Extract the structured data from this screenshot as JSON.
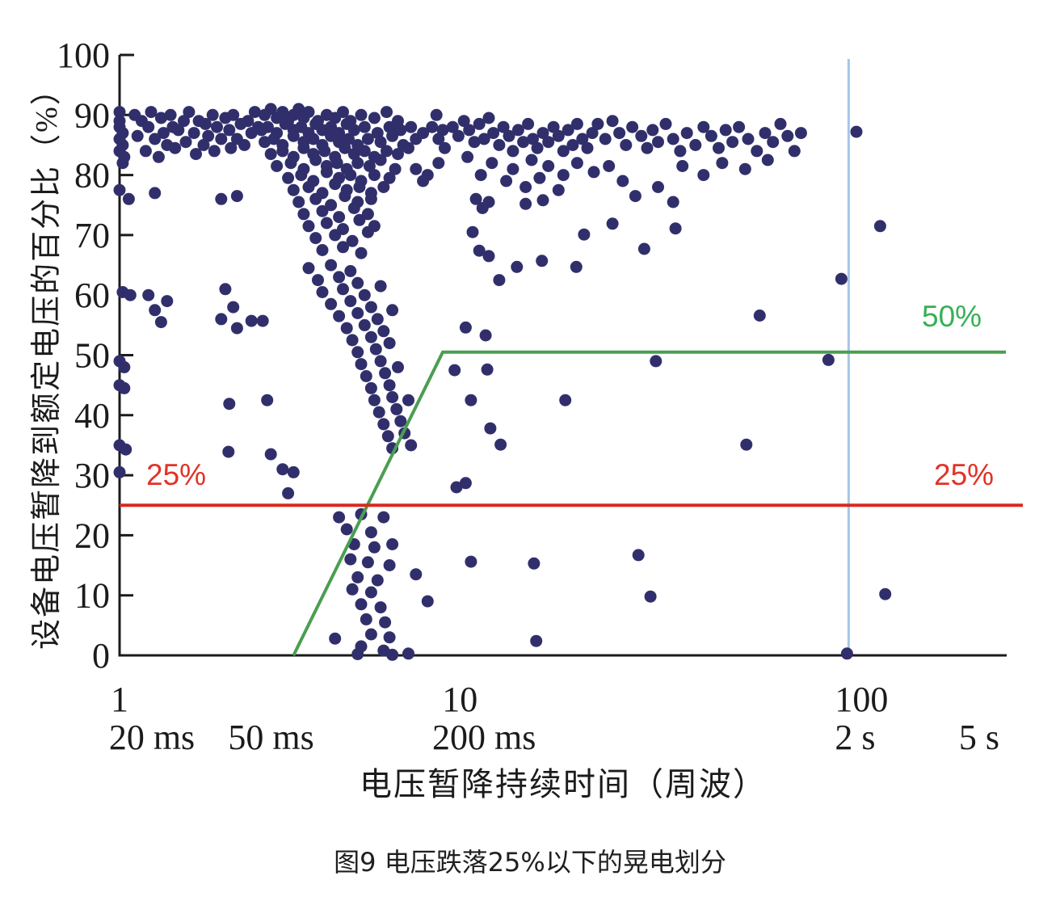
{
  "figure": {
    "caption": "图9 电压跌落25%以下的晃电划分"
  },
  "chart_data": {
    "type": "scatter",
    "title": "图9 电压跌落25%以下的晃电划分",
    "xlabel": "电压暂降持续时间（周波）",
    "ylabel": "设备电压暂降到额定电压的百分比（%）",
    "x_scale": "log",
    "x_range_cycles": [
      1,
      270
    ],
    "y_range_percent": [
      0,
      100
    ],
    "grid": "off",
    "y_ticks": [
      0,
      10,
      20,
      30,
      40,
      50,
      60,
      70,
      80,
      90,
      100
    ],
    "x_ticks": [
      {
        "cycles": 1,
        "label": "1",
        "time_label": "20 ms"
      },
      {
        "cycles": 2.5,
        "label": "",
        "time_label": "50 ms"
      },
      {
        "cycles": 10,
        "label": "10",
        "time_label": "200 ms"
      },
      {
        "cycles": 100,
        "label": "100",
        "time_label": "2 s"
      },
      {
        "cycles": 250,
        "label": "",
        "time_label": "5 s"
      }
    ],
    "colors": {
      "points": "#312f6b",
      "axis": "#1b1b1b",
      "red_line": "#d8291f",
      "red_label": "#e13328",
      "green_line": "#4b9e51",
      "green_label": "#35b155",
      "blue_line": "#a5c6e8"
    },
    "reference_lines": {
      "red_horizontal": {
        "percent": 25,
        "label": "25%",
        "label_positions": [
          "left",
          "right"
        ]
      },
      "green_curve": {
        "points_cycles_percent": [
          [
            3.0,
            0
          ],
          [
            7.7,
            50.5
          ],
          [
            270,
            50.5
          ]
        ],
        "label": "50%"
      },
      "blue_vertical": {
        "cycles": 100
      }
    },
    "points_cycles_percent": [
      [
        1,
        90.5
      ],
      [
        1,
        89
      ],
      [
        1,
        88
      ],
      [
        1.02,
        87
      ],
      [
        1,
        86
      ],
      [
        1.02,
        85
      ],
      [
        1,
        84
      ],
      [
        1.03,
        83
      ],
      [
        1.02,
        82
      ],
      [
        1,
        77.5
      ],
      [
        1.06,
        76
      ],
      [
        1.02,
        60.5
      ],
      [
        1.07,
        60
      ],
      [
        1,
        49
      ],
      [
        1.03,
        48
      ],
      [
        1,
        45
      ],
      [
        1.03,
        44.5
      ],
      [
        1,
        35
      ],
      [
        1.04,
        34.3
      ],
      [
        1,
        30.5
      ],
      [
        1.1,
        90
      ],
      [
        1.12,
        86.5
      ],
      [
        1.15,
        89
      ],
      [
        1.18,
        84
      ],
      [
        1.2,
        88
      ],
      [
        1.22,
        90.5
      ],
      [
        1.25,
        86
      ],
      [
        1.28,
        83
      ],
      [
        1.3,
        89.5
      ],
      [
        1.32,
        87
      ],
      [
        1.35,
        85
      ],
      [
        1.38,
        90
      ],
      [
        1.4,
        88
      ],
      [
        1.42,
        84.5
      ],
      [
        1.45,
        87.5
      ],
      [
        1.5,
        89
      ],
      [
        1.52,
        85.5
      ],
      [
        1.55,
        90.5
      ],
      [
        1.6,
        87
      ],
      [
        1.62,
        83.5
      ],
      [
        1.65,
        89
      ],
      [
        1.7,
        85
      ],
      [
        1.72,
        88.5
      ],
      [
        1.75,
        86.5
      ],
      [
        1.8,
        90
      ],
      [
        1.82,
        84
      ],
      [
        1.85,
        88
      ],
      [
        1.9,
        86
      ],
      [
        1.95,
        89.5
      ],
      [
        2,
        87.5
      ],
      [
        2.02,
        84.5
      ],
      [
        2.05,
        90
      ],
      [
        2.1,
        86
      ],
      [
        2.15,
        88.5
      ],
      [
        2.2,
        85
      ],
      [
        2.25,
        89
      ],
      [
        2.3,
        87
      ],
      [
        2.35,
        90.5
      ],
      [
        2.4,
        88
      ],
      [
        1.25,
        77
      ],
      [
        1.9,
        76
      ],
      [
        2.1,
        76.5
      ],
      [
        2.5,
        90
      ],
      [
        2.6,
        91
      ],
      [
        2.7,
        89.5
      ],
      [
        2.8,
        90.5
      ],
      [
        2.9,
        89
      ],
      [
        3,
        90
      ],
      [
        3.1,
        91
      ],
      [
        3.2,
        89.5
      ],
      [
        3.3,
        90.5
      ],
      [
        3.5,
        89
      ],
      [
        3.7,
        90
      ],
      [
        3.9,
        89.5
      ],
      [
        4.1,
        90.5
      ],
      [
        4.3,
        89
      ],
      [
        4.6,
        90
      ],
      [
        5,
        89.5
      ],
      [
        5.4,
        90.5
      ],
      [
        5.8,
        89
      ],
      [
        2.45,
        87.5
      ],
      [
        2.55,
        88
      ],
      [
        2.7,
        87
      ],
      [
        2.85,
        88.5
      ],
      [
        3,
        87.5
      ],
      [
        3.15,
        88
      ],
      [
        3.3,
        87
      ],
      [
        3.45,
        88.5
      ],
      [
        3.6,
        87.5
      ],
      [
        3.8,
        88
      ],
      [
        4,
        87
      ],
      [
        4.2,
        88.5
      ],
      [
        4.4,
        87.5
      ],
      [
        4.7,
        88
      ],
      [
        5.1,
        87
      ],
      [
        5.5,
        88
      ],
      [
        5.9,
        87.5
      ],
      [
        6.3,
        88
      ],
      [
        6.8,
        87
      ],
      [
        2.5,
        85.5
      ],
      [
        2.65,
        86
      ],
      [
        2.8,
        85
      ],
      [
        3,
        86.5
      ],
      [
        3.2,
        85.5
      ],
      [
        3.4,
        86
      ],
      [
        3.6,
        85
      ],
      [
        3.8,
        86.5
      ],
      [
        4,
        85.5
      ],
      [
        4.25,
        86
      ],
      [
        4.5,
        85
      ],
      [
        4.8,
        86
      ],
      [
        5.2,
        85.5
      ],
      [
        5.6,
        86.5
      ],
      [
        6,
        85
      ],
      [
        6.5,
        86
      ],
      [
        2.6,
        83.5
      ],
      [
        2.8,
        84
      ],
      [
        3,
        83
      ],
      [
        3.2,
        84.5
      ],
      [
        3.4,
        83.5
      ],
      [
        3.65,
        84
      ],
      [
        3.9,
        83
      ],
      [
        4.15,
        84.5
      ],
      [
        4.4,
        83.5
      ],
      [
        4.7,
        84
      ],
      [
        5,
        83
      ],
      [
        5.4,
        84
      ],
      [
        5.8,
        83.5
      ],
      [
        6.2,
        84.5
      ],
      [
        2.7,
        81.5
      ],
      [
        2.95,
        82
      ],
      [
        3.2,
        81
      ],
      [
        3.45,
        82.5
      ],
      [
        3.7,
        81.5
      ],
      [
        3.95,
        82
      ],
      [
        4.2,
        81
      ],
      [
        4.5,
        82
      ],
      [
        4.85,
        81.5
      ],
      [
        5.2,
        82.5
      ],
      [
        5.7,
        81
      ],
      [
        2.9,
        79.5
      ],
      [
        3.15,
        80
      ],
      [
        3.4,
        79
      ],
      [
        3.7,
        80.5
      ],
      [
        4,
        79.5
      ],
      [
        4.3,
        80
      ],
      [
        4.6,
        79
      ],
      [
        5,
        80
      ],
      [
        5.5,
        79.5
      ],
      [
        3,
        77.5
      ],
      [
        3.3,
        78
      ],
      [
        3.6,
        77
      ],
      [
        3.9,
        78.5
      ],
      [
        4.2,
        77.5
      ],
      [
        4.55,
        78
      ],
      [
        4.9,
        77
      ],
      [
        5.3,
        78
      ],
      [
        3.1,
        75.5
      ],
      [
        3.45,
        76
      ],
      [
        3.8,
        75
      ],
      [
        4.15,
        76.5
      ],
      [
        4.5,
        75.5
      ],
      [
        4.9,
        76
      ],
      [
        3.2,
        73.5
      ],
      [
        3.6,
        74
      ],
      [
        4,
        73
      ],
      [
        4.4,
        74.5
      ],
      [
        4.8,
        73.5
      ],
      [
        3.3,
        71.5
      ],
      [
        3.7,
        72
      ],
      [
        4.1,
        71
      ],
      [
        4.55,
        72.5
      ],
      [
        5,
        71.5
      ],
      [
        3.45,
        69.5
      ],
      [
        3.9,
        70
      ],
      [
        4.35,
        69
      ],
      [
        4.8,
        70.5
      ],
      [
        3.6,
        67.5
      ],
      [
        4.1,
        68
      ],
      [
        4.6,
        67
      ],
      [
        7.2,
        88
      ],
      [
        7.5,
        86
      ],
      [
        7.8,
        84.5
      ],
      [
        7.4,
        90
      ],
      [
        7.7,
        87.5
      ],
      [
        6.5,
        81
      ],
      [
        7,
        80
      ],
      [
        7.5,
        82
      ],
      [
        6.8,
        79
      ],
      [
        3.3,
        64.5
      ],
      [
        3.8,
        65
      ],
      [
        4.3,
        64
      ],
      [
        3.5,
        62.5
      ],
      [
        4,
        63
      ],
      [
        4.5,
        62
      ],
      [
        3.6,
        60.5
      ],
      [
        4.1,
        61
      ],
      [
        4.7,
        60
      ],
      [
        5.2,
        61.5
      ],
      [
        3.8,
        58.5
      ],
      [
        4.3,
        59
      ],
      [
        4.9,
        58
      ],
      [
        4,
        56.5
      ],
      [
        4.5,
        57
      ],
      [
        5.1,
        56
      ],
      [
        5.6,
        57.5
      ],
      [
        4.2,
        54.5
      ],
      [
        4.7,
        55
      ],
      [
        5.3,
        54
      ],
      [
        4.35,
        52.5
      ],
      [
        4.9,
        53
      ],
      [
        5.5,
        52
      ],
      [
        4.5,
        50.5
      ],
      [
        5.05,
        51
      ],
      [
        4.6,
        48.5
      ],
      [
        5.2,
        49
      ],
      [
        5.8,
        48
      ],
      [
        4.75,
        46.5
      ],
      [
        5.35,
        47
      ],
      [
        4.9,
        44.5
      ],
      [
        5.5,
        45
      ],
      [
        5,
        42.5
      ],
      [
        5.6,
        43
      ],
      [
        6.2,
        42.5
      ],
      [
        5.15,
        40.5
      ],
      [
        5.75,
        41
      ],
      [
        5.3,
        38.5
      ],
      [
        5.9,
        39
      ],
      [
        5.45,
        36.5
      ],
      [
        6.05,
        37
      ],
      [
        5.6,
        34.5
      ],
      [
        6.3,
        35
      ],
      [
        1.2,
        60
      ],
      [
        1.25,
        57.5
      ],
      [
        1.35,
        59
      ],
      [
        1.3,
        55.5
      ],
      [
        1.95,
        61
      ],
      [
        2.05,
        58
      ],
      [
        1.9,
        56
      ],
      [
        2.1,
        54.5
      ],
      [
        2.3,
        55.7
      ],
      [
        2.47,
        55.7
      ],
      [
        2,
        41.9
      ],
      [
        2.54,
        42.5
      ],
      [
        1.99,
        33.9
      ],
      [
        2.6,
        33.5
      ],
      [
        2.8,
        31
      ],
      [
        3,
        30.5
      ],
      [
        2.9,
        27
      ],
      [
        4,
        23
      ],
      [
        4.6,
        23.5
      ],
      [
        5.3,
        23
      ],
      [
        4.2,
        21
      ],
      [
        4.9,
        20.5
      ],
      [
        4.4,
        18.5
      ],
      [
        5,
        18
      ],
      [
        5.6,
        18.5
      ],
      [
        4.3,
        16
      ],
      [
        4.8,
        15.5
      ],
      [
        5.5,
        15
      ],
      [
        4.5,
        13
      ],
      [
        5.1,
        12.5
      ],
      [
        4.35,
        11
      ],
      [
        4.9,
        10.5
      ],
      [
        4.6,
        8.5
      ],
      [
        5.2,
        8
      ],
      [
        4.75,
        6
      ],
      [
        5.35,
        5.5
      ],
      [
        4.9,
        3.5
      ],
      [
        5.5,
        3
      ],
      [
        4.6,
        1.5
      ],
      [
        5.3,
        0.8
      ],
      [
        6.2,
        0.3
      ],
      [
        7,
        9
      ],
      [
        6.5,
        13.5
      ],
      [
        3.9,
        2.8
      ],
      [
        4.5,
        0.2
      ],
      [
        5.6,
        0.1
      ],
      [
        8.2,
        88
      ],
      [
        8.5,
        86.5
      ],
      [
        8.8,
        89
      ],
      [
        9.1,
        87.5
      ],
      [
        9.4,
        85.5
      ],
      [
        9.7,
        88.5
      ],
      [
        10,
        86
      ],
      [
        10.3,
        89.5
      ],
      [
        10.6,
        87
      ],
      [
        11,
        85
      ],
      [
        11.3,
        88
      ],
      [
        11.7,
        86.5
      ],
      [
        12,
        84
      ],
      [
        12.4,
        87.5
      ],
      [
        12.8,
        85.5
      ],
      [
        13.2,
        88.5
      ],
      [
        13.6,
        86
      ],
      [
        14,
        84.5
      ],
      [
        14.5,
        87
      ],
      [
        15,
        85.5
      ],
      [
        15.5,
        88
      ],
      [
        16,
        86.5
      ],
      [
        16.5,
        84
      ],
      [
        17,
        87.5
      ],
      [
        17.5,
        85
      ],
      [
        18,
        88.5
      ],
      [
        18.6,
        86
      ],
      [
        19.2,
        84.5
      ],
      [
        19.8,
        87
      ],
      [
        10.5,
        82
      ],
      [
        12,
        81
      ],
      [
        13.5,
        82.5
      ],
      [
        15,
        81.5
      ],
      [
        16.5,
        80
      ],
      [
        18,
        82
      ],
      [
        9,
        83
      ],
      [
        9.8,
        80
      ],
      [
        11.5,
        79
      ],
      [
        13,
        78
      ],
      [
        14.2,
        79.5
      ],
      [
        16,
        77.5
      ],
      [
        9.5,
        76
      ],
      [
        10.3,
        75.5
      ],
      [
        9.9,
        74.5
      ],
      [
        13,
        75.2
      ],
      [
        14.5,
        75.8
      ],
      [
        9.3,
        70.5
      ],
      [
        9.7,
        67.4
      ],
      [
        10.3,
        66.5
      ],
      [
        14.4,
        65.7
      ],
      [
        17.9,
        64.7
      ],
      [
        18.8,
        70.1
      ],
      [
        22.5,
        71.9
      ],
      [
        27.5,
        67.7
      ],
      [
        33.5,
        71.1
      ],
      [
        11,
        62.5
      ],
      [
        12.3,
        64.7
      ],
      [
        20.5,
        88.5
      ],
      [
        21.5,
        86
      ],
      [
        22.5,
        89
      ],
      [
        23.5,
        87
      ],
      [
        24.5,
        85
      ],
      [
        25.5,
        88
      ],
      [
        27,
        86.5
      ],
      [
        28,
        84.5
      ],
      [
        29,
        87.5
      ],
      [
        30,
        85.5
      ],
      [
        31.5,
        88.5
      ],
      [
        33,
        86
      ],
      [
        34.5,
        84
      ],
      [
        36,
        87
      ],
      [
        38,
        85
      ],
      [
        40,
        88
      ],
      [
        42,
        86.5
      ],
      [
        44,
        84.5
      ],
      [
        46,
        87.5
      ],
      [
        48,
        85.5
      ],
      [
        50,
        88
      ],
      [
        53,
        86
      ],
      [
        56,
        84
      ],
      [
        59,
        87
      ],
      [
        62,
        85.5
      ],
      [
        65,
        88.5
      ],
      [
        68,
        86.5
      ],
      [
        71,
        84
      ],
      [
        74,
        87
      ],
      [
        45,
        82
      ],
      [
        52,
        81
      ],
      [
        60,
        82.5
      ],
      [
        35,
        81.5
      ],
      [
        40,
        80
      ],
      [
        20,
        80.5
      ],
      [
        22,
        81.5
      ],
      [
        24,
        79
      ],
      [
        30,
        78
      ],
      [
        26,
        76.5
      ],
      [
        33,
        75.5
      ],
      [
        8.9,
        54.6
      ],
      [
        10.1,
        53.3
      ],
      [
        8.3,
        47.5
      ],
      [
        10.2,
        47.6
      ],
      [
        9.2,
        42.5
      ],
      [
        16.7,
        42.5
      ],
      [
        10.4,
        37.8
      ],
      [
        11.1,
        35.1
      ],
      [
        52.4,
        35.1
      ],
      [
        8.9,
        28.7
      ],
      [
        8.4,
        28
      ],
      [
        9.2,
        15.6
      ],
      [
        13.7,
        15.3
      ],
      [
        26.5,
        16.7
      ],
      [
        28.6,
        9.8
      ],
      [
        13.9,
        2.4
      ],
      [
        126,
        10.2
      ],
      [
        99,
        0.3
      ],
      [
        105,
        87.2
      ],
      [
        122,
        71.5
      ],
      [
        95.5,
        62.7
      ],
      [
        29.6,
        49
      ],
      [
        57,
        56.6
      ],
      [
        88,
        49.2
      ]
    ]
  }
}
